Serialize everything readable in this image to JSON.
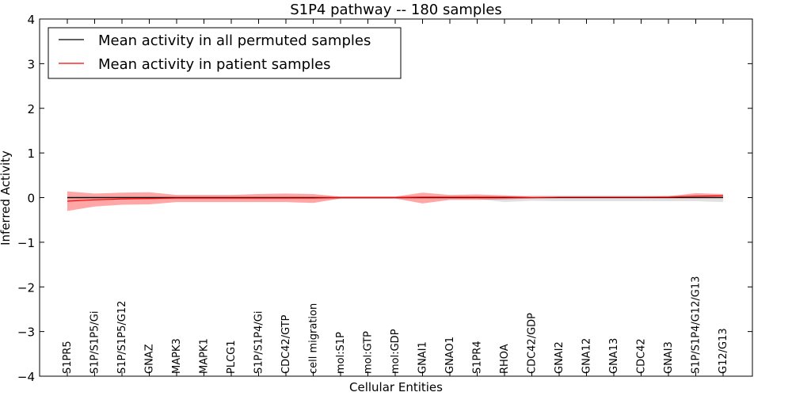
{
  "chart_data": {
    "type": "line",
    "title": "S1P4 pathway -- 180 samples",
    "xlabel": "Cellular Entities",
    "ylabel": "Inferred Activity",
    "ylim": [
      -4,
      4
    ],
    "yticks": [
      -4,
      -3,
      -2,
      -1,
      0,
      1,
      2,
      3,
      4
    ],
    "grid": false,
    "legend_position": "top-left",
    "categories": [
      "S1PR5",
      "S1P/S1P5/Gi",
      "S1P/S1P5/G12",
      "GNAZ",
      "MAPK3",
      "MAPK1",
      "PLCG1",
      "S1P/S1P4/Gi",
      "CDC42/GTP",
      "cell migration",
      "mol:S1P",
      "mol:GTP",
      "mol:GDP",
      "GNAI1",
      "GNAO1",
      "S1PR4",
      "RHOA",
      "CDC42/GDP",
      "GNAI2",
      "GNA12",
      "GNA13",
      "CDC42",
      "GNAI3",
      "S1P/S1P4/G12/G13",
      "G12/G13"
    ],
    "series": [
      {
        "name": "Mean activity in all permuted samples",
        "color": "#000000",
        "values": [
          0.0,
          0.0,
          0.0,
          0.0,
          0.0,
          0.0,
          0.0,
          0.0,
          0.0,
          0.0,
          0.0,
          0.0,
          0.0,
          0.0,
          0.0,
          0.0,
          0.0,
          0.0,
          0.0,
          0.0,
          0.0,
          0.0,
          0.0,
          0.0,
          0.0
        ],
        "band_upper": [
          0.03,
          0.03,
          0.03,
          0.03,
          0.03,
          0.03,
          0.03,
          0.03,
          0.03,
          0.03,
          0.03,
          0.03,
          0.03,
          0.03,
          0.03,
          0.03,
          0.03,
          0.05,
          0.05,
          0.05,
          0.05,
          0.05,
          0.05,
          0.05,
          0.05
        ],
        "band_lower": [
          -0.03,
          -0.03,
          -0.03,
          -0.03,
          -0.03,
          -0.03,
          -0.03,
          -0.03,
          -0.03,
          -0.03,
          -0.03,
          -0.03,
          -0.03,
          -0.03,
          -0.03,
          -0.03,
          -0.1,
          -0.07,
          -0.08,
          -0.08,
          -0.08,
          -0.08,
          -0.08,
          -0.08,
          -0.1
        ]
      },
      {
        "name": "Mean activity in patient samples",
        "color": "#ff0000",
        "values": [
          -0.08,
          -0.05,
          -0.03,
          -0.02,
          -0.01,
          -0.01,
          -0.01,
          -0.01,
          -0.01,
          -0.01,
          0.0,
          0.0,
          0.0,
          0.01,
          0.01,
          0.01,
          0.01,
          0.0,
          0.01,
          0.01,
          0.01,
          0.01,
          0.01,
          0.03,
          0.04
        ],
        "band_upper": [
          0.14,
          0.09,
          0.11,
          0.12,
          0.06,
          0.06,
          0.06,
          0.08,
          0.09,
          0.08,
          0.02,
          0.02,
          0.02,
          0.11,
          0.06,
          0.07,
          0.05,
          0.02,
          0.02,
          0.02,
          0.02,
          0.02,
          0.03,
          0.1,
          0.08
        ],
        "band_lower": [
          -0.3,
          -0.2,
          -0.16,
          -0.15,
          -0.1,
          -0.1,
          -0.1,
          -0.1,
          -0.1,
          -0.12,
          -0.02,
          -0.02,
          -0.02,
          -0.13,
          -0.05,
          -0.05,
          -0.04,
          -0.02,
          -0.01,
          -0.01,
          -0.01,
          -0.01,
          -0.01,
          -0.01,
          -0.01
        ]
      }
    ]
  }
}
